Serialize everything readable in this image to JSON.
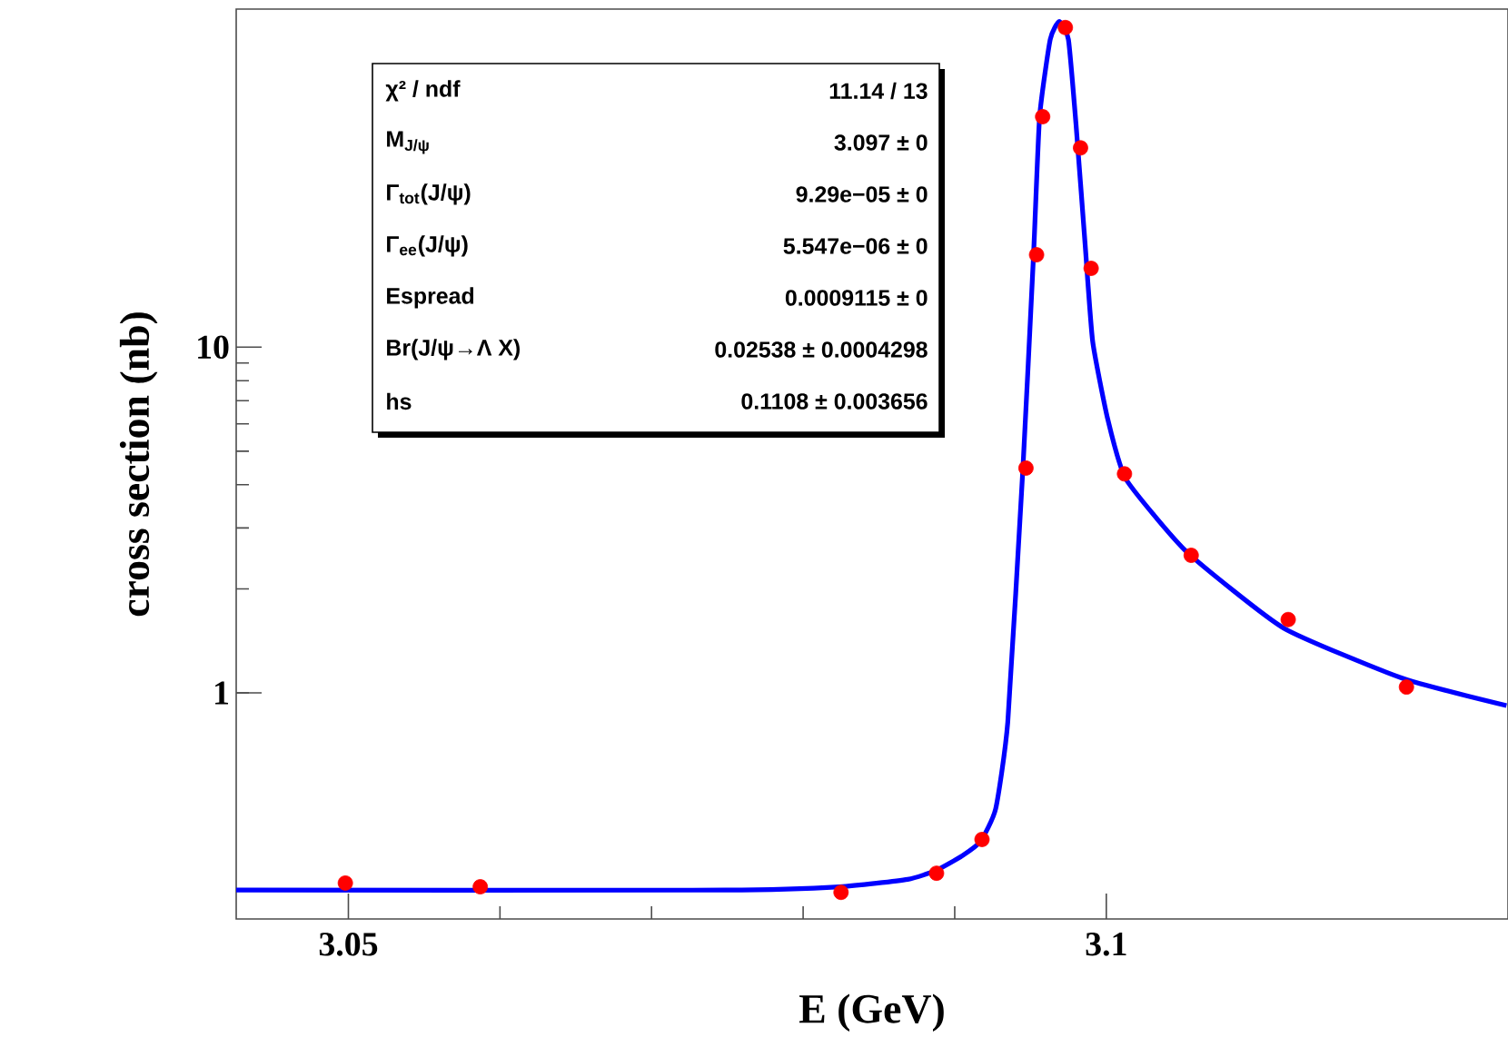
{
  "chart_data": {
    "type": "scatter",
    "xlabel": "E (GeV)",
    "ylabel": "cross section (nb)",
    "xlim": [
      3.0426,
      3.1265
    ],
    "ylim": [
      0.222,
      95
    ],
    "xticks": [
      3.05,
      3.1
    ],
    "yticks": [
      1,
      10
    ],
    "log": "y",
    "grid": false,
    "marker": "circle",
    "annotations": [
      "χ² / ndf",
      "11.14 / 13",
      "M$_{J/ψ}$",
      "3.097 ±    0",
      "Γ$_{tot}$(J/ψ)",
      "9.29e−05 ±    0",
      "Γ$_{ee}$(J/ψ)",
      "5.547e−06 ±    0",
      "Espread",
      "0.0009115 ±    0",
      "Br(J/ψ→Λ X)",
      "0.02538 ± 0.0004298",
      "hs",
      "0.1108 ± 0.003656"
    ],
    "series": [
      {
        "color": "#ff0000",
        "x": [
          3.0498,
          3.0587,
          3.0825,
          3.0888,
          3.0918,
          3.0947,
          3.0954,
          3.0958,
          3.0973,
          3.0983,
          3.099,
          3.1012,
          3.1056,
          3.112,
          3.1198
        ],
        "values": [
          0.282,
          0.275,
          0.265,
          0.301,
          0.377,
          4.47,
          18.5,
          46.4,
          84,
          37.7,
          16.9,
          4.3,
          2.5,
          1.63,
          1.04
        ]
      },
      {
        "type": "line",
        "color": "#0000ff",
        "marker": "none",
        "line_style": "solid",
        "x": [
          3.0426,
          3.0749,
          3.0824,
          3.0869,
          3.0888,
          3.0905,
          3.0917,
          3.0927,
          3.0935,
          3.0945,
          3.0952,
          3.0956,
          3.0963,
          3.0969,
          3.0975,
          3.098,
          3.0986,
          3.0991,
          3.1001,
          3.1013,
          3.1053,
          3.1117,
          3.1196,
          3.1264
        ],
        "values": [
          0.269,
          0.269,
          0.275,
          0.289,
          0.307,
          0.338,
          0.372,
          0.462,
          0.824,
          4.47,
          18.5,
          46.4,
          77.6,
          87.5,
          77.6,
          44.2,
          19.9,
          10.4,
          6.18,
          4.15,
          2.56,
          1.54,
          1.1,
          0.919
        ]
      }
    ]
  }
}
